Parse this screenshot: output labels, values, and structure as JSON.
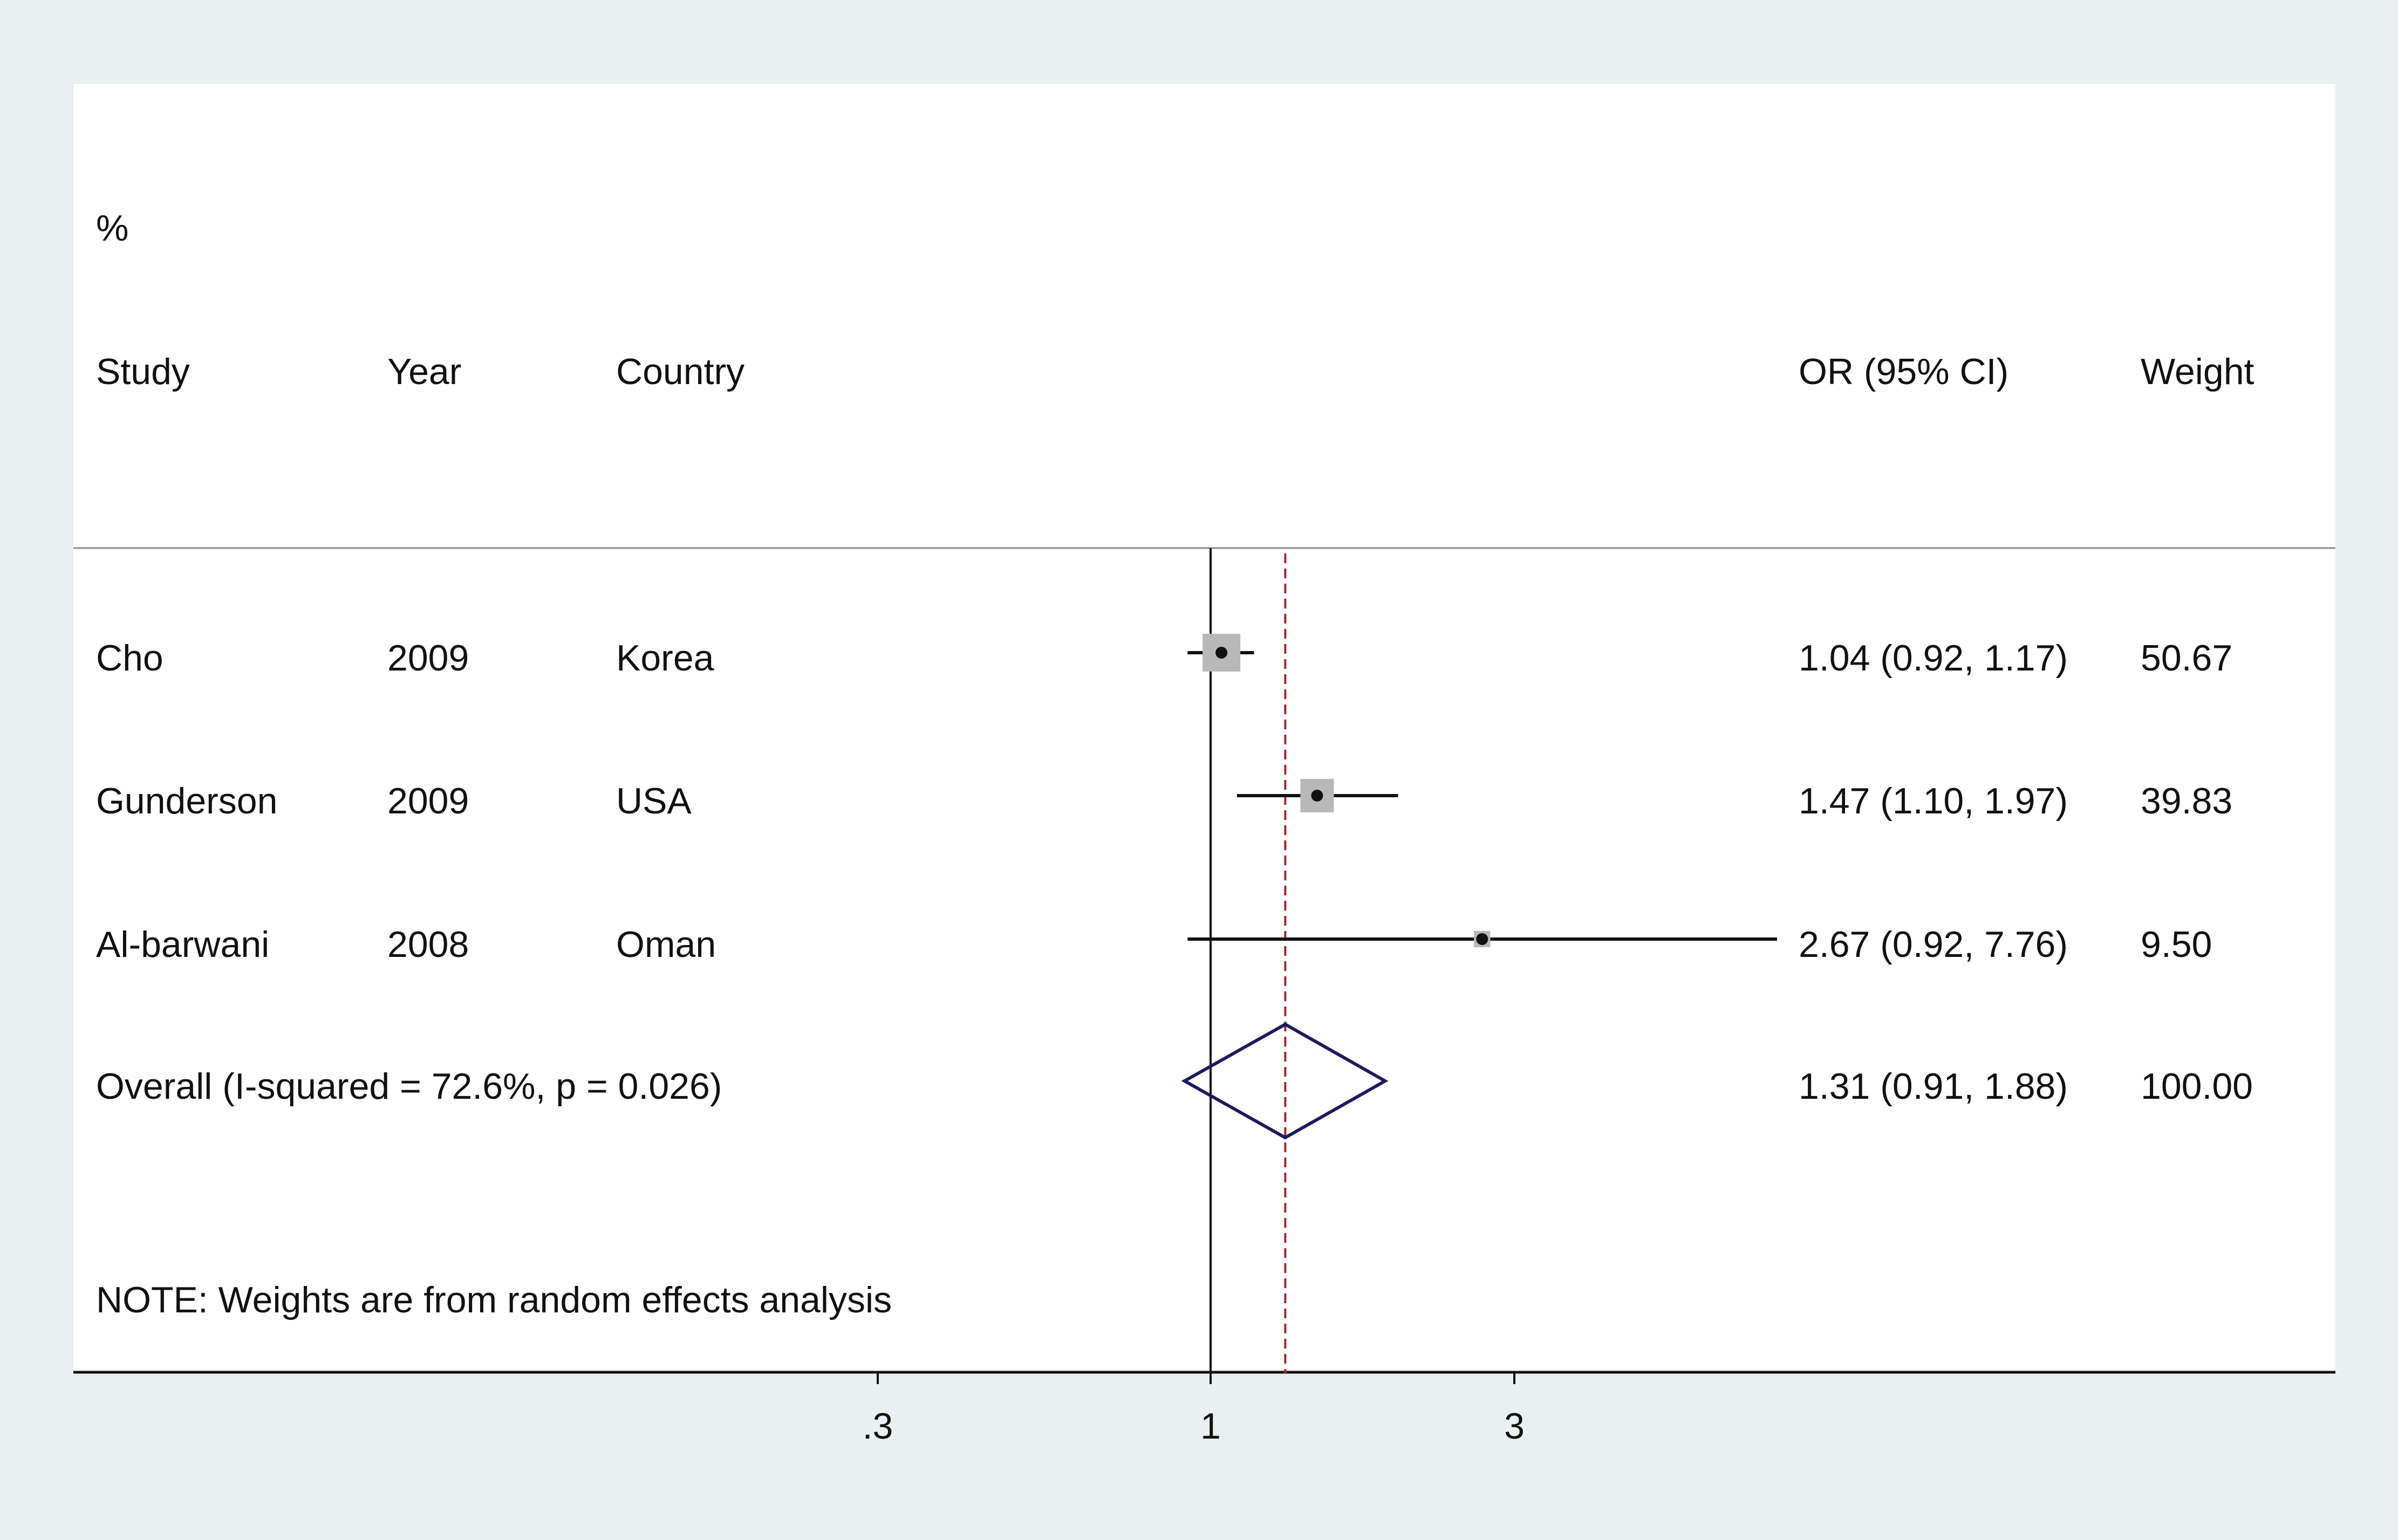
{
  "chart_data": {
    "type": "forest",
    "headers": {
      "study": "Study",
      "year": "Year",
      "country": "Country",
      "effect": "OR (95% CI)",
      "weight_top": "%",
      "weight": "Weight"
    },
    "studies": [
      {
        "study": "Cho",
        "year": "2009",
        "country": "Korea",
        "or": 1.04,
        "ci_low": 0.92,
        "ci_high": 1.17,
        "weight": 50.67,
        "effect_label": "1.04 (0.92, 1.17)",
        "weight_label": "50.67"
      },
      {
        "study": "Gunderson",
        "year": "2009",
        "country": "USA",
        "or": 1.47,
        "ci_low": 1.1,
        "ci_high": 1.97,
        "weight": 39.83,
        "effect_label": "1.47 (1.10, 1.97)",
        "weight_label": "39.83"
      },
      {
        "study": "Al-barwani",
        "year": "2008",
        "country": "Oman",
        "or": 2.67,
        "ci_low": 0.92,
        "ci_high": 7.76,
        "weight": 9.5,
        "effect_label": "2.67 (0.92, 7.76)",
        "weight_label": "9.50"
      }
    ],
    "overall": {
      "label": "Overall  (I-squared = 72.6%, p = 0.026)",
      "or": 1.31,
      "ci_low": 0.91,
      "ci_high": 1.88,
      "effect_label": "1.31 (0.91, 1.88)",
      "weight_label": "100.00"
    },
    "note": "NOTE: Weights are from random effects analysis",
    "x_axis": {
      "scale": "log",
      "ticks": [
        0.3,
        1,
        3
      ],
      "tick_labels": [
        ".3",
        "1",
        "3"
      ],
      "null_value": 1
    },
    "colors": {
      "box": "#b8b8b8",
      "diamond": "#1c1c5c",
      "overall_line": "#9a2a2a",
      "line": "#111111",
      "panel": "#ffffff",
      "background": "#e9f0f0"
    }
  }
}
